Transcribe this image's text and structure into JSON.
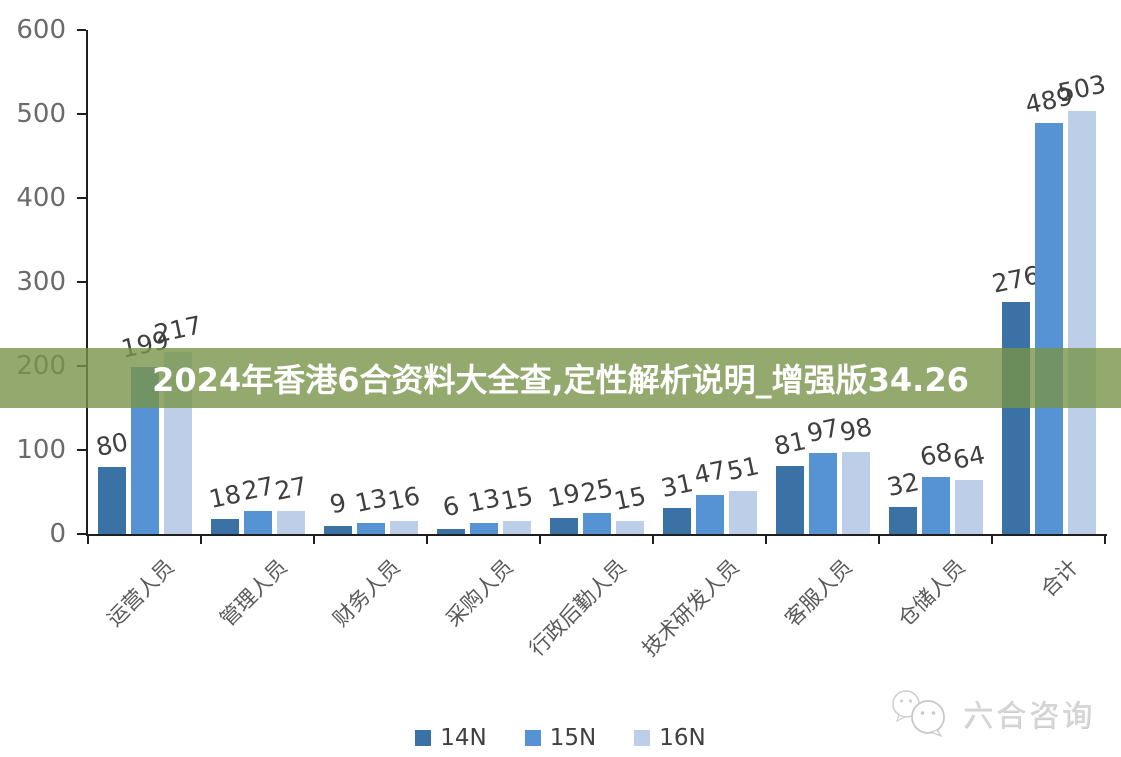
{
  "banner": {
    "text": "2024年香港6合资料大全查,定性解析说明_增强版34.26",
    "bg_color": "rgba(120,147,72,0.8)",
    "text_color": "#ffffff"
  },
  "watermark": {
    "text": "六合咨询",
    "icon": "chat-bubbles-icon"
  },
  "chart_data": {
    "type": "bar",
    "title": "",
    "xlabel": "",
    "ylabel": "",
    "categories": [
      "运营人员",
      "管理人员",
      "财务人员",
      "采购人员",
      "行政后勤人员",
      "技术研发人员",
      "客服人员",
      "仓储人员",
      "合计"
    ],
    "series": [
      {
        "name": "14N",
        "color": "#3a72a6",
        "values": [
          80,
          18,
          9,
          6,
          19,
          31,
          81,
          32,
          276
        ]
      },
      {
        "name": "15N",
        "color": "#5593d4",
        "values": [
          199,
          27,
          13,
          13,
          25,
          47,
          97,
          68,
          489
        ]
      },
      {
        "name": "16N",
        "color": "#bdcfe8",
        "values": [
          217,
          27,
          16,
          15,
          15,
          51,
          98,
          64,
          503
        ]
      }
    ],
    "ylim": [
      0,
      600
    ],
    "yticks": [
      0,
      100,
      200,
      300,
      400,
      500,
      600
    ],
    "grid": false,
    "legend_position": "bottom",
    "axis_color": "#1f1f1f",
    "value_label_color": "#3f3f3f",
    "tick_label_color": "#6a6a6a"
  }
}
